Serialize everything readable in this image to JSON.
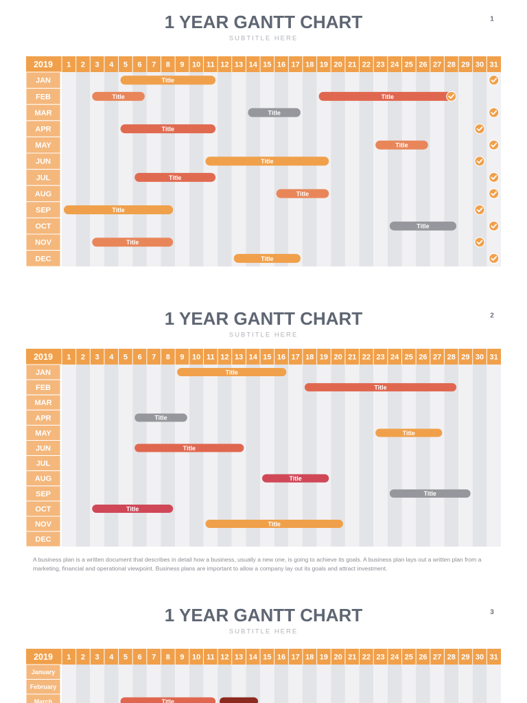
{
  "slides": [
    {
      "number": "1",
      "title": "1 YEAR GANTT CHART",
      "subtitle": "SUBTITLE HERE",
      "year": "2019",
      "days": [
        1,
        2,
        3,
        4,
        5,
        6,
        7,
        8,
        9,
        10,
        11,
        12,
        13,
        14,
        15,
        16,
        17,
        18,
        19,
        20,
        21,
        22,
        23,
        24,
        25,
        26,
        27,
        28,
        29,
        30,
        31
      ],
      "rows": [
        {
          "label": "JAN",
          "bars": [
            {
              "label": "Title",
              "start": 5,
              "end": 11,
              "color": "#f0a04b"
            }
          ],
          "checks": [
            31
          ]
        },
        {
          "label": "FEB",
          "bars": [
            {
              "label": "Title",
              "start": 3,
              "end": 6,
              "color": "#e8865a"
            },
            {
              "label": "Title",
              "start": 19,
              "end": 28,
              "color": "#e0674f"
            }
          ],
          "checks": [
            28
          ]
        },
        {
          "label": "MAR",
          "bars": [
            {
              "label": "Title",
              "start": 14,
              "end": 17,
              "color": "#96979c"
            }
          ],
          "checks": [
            31
          ]
        },
        {
          "label": "APR",
          "bars": [
            {
              "label": "Title",
              "start": 5,
              "end": 11,
              "color": "#e06a50"
            }
          ],
          "checks": [
            30
          ]
        },
        {
          "label": "MAY",
          "bars": [
            {
              "label": "Title",
              "start": 23,
              "end": 26,
              "color": "#e8865a"
            }
          ],
          "checks": [
            31
          ]
        },
        {
          "label": "JUN",
          "bars": [
            {
              "label": "Title",
              "start": 11,
              "end": 19,
              "color": "#f0a04b"
            }
          ],
          "checks": [
            30
          ]
        },
        {
          "label": "JUL",
          "bars": [
            {
              "label": "Title",
              "start": 6,
              "end": 11,
              "color": "#e06a50"
            }
          ],
          "checks": [
            31
          ]
        },
        {
          "label": "AUG",
          "bars": [
            {
              "label": "Title",
              "start": 16,
              "end": 19,
              "color": "#e8865a"
            }
          ],
          "checks": [
            31
          ]
        },
        {
          "label": "SEP",
          "bars": [
            {
              "label": "Title",
              "start": 1,
              "end": 8,
              "color": "#f0a04b"
            }
          ],
          "checks": [
            30
          ]
        },
        {
          "label": "OCT",
          "bars": [
            {
              "label": "Title",
              "start": 24,
              "end": 28,
              "color": "#96979c"
            }
          ],
          "checks": [
            31
          ]
        },
        {
          "label": "NOV",
          "bars": [
            {
              "label": "Title",
              "start": 3,
              "end": 8,
              "color": "#e8865a"
            }
          ],
          "checks": [
            30
          ]
        },
        {
          "label": "DEC",
          "bars": [
            {
              "label": "Title",
              "start": 13,
              "end": 17,
              "color": "#f0a04b"
            }
          ],
          "checks": [
            31
          ]
        }
      ]
    },
    {
      "number": "2",
      "title": "1 YEAR GANTT CHART",
      "subtitle": "SUBTITLE HERE",
      "year": "2019",
      "days": [
        1,
        2,
        3,
        4,
        5,
        6,
        7,
        8,
        9,
        10,
        11,
        12,
        13,
        14,
        15,
        16,
        17,
        18,
        19,
        20,
        21,
        22,
        23,
        24,
        25,
        26,
        27,
        28,
        29,
        30,
        31
      ],
      "rows": [
        {
          "label": "JAN",
          "bars": [
            {
              "label": "Title",
              "start": 9,
              "end": 16,
              "color": "#f0a04b"
            }
          ]
        },
        {
          "label": "FEB",
          "bars": [
            {
              "label": "Title",
              "start": 18,
              "end": 28,
              "color": "#e0674f"
            }
          ]
        },
        {
          "label": "MAR",
          "bars": []
        },
        {
          "label": "APR",
          "bars": [
            {
              "label": "Title",
              "start": 6,
              "end": 9,
              "color": "#96979c"
            }
          ]
        },
        {
          "label": "MAY",
          "bars": [
            {
              "label": "Title",
              "start": 23,
              "end": 27,
              "color": "#f0a04b"
            }
          ]
        },
        {
          "label": "JUN",
          "bars": [
            {
              "label": "Title",
              "start": 6,
              "end": 13,
              "color": "#e0674f"
            }
          ]
        },
        {
          "label": "JUL",
          "bars": []
        },
        {
          "label": "AUG",
          "bars": [
            {
              "label": "Title",
              "start": 15,
              "end": 19,
              "color": "#d04858"
            }
          ]
        },
        {
          "label": "SEP",
          "bars": [
            {
              "label": "Title",
              "start": 24,
              "end": 29,
              "color": "#96979c"
            }
          ]
        },
        {
          "label": "OCT",
          "bars": [
            {
              "label": "Title",
              "start": 3,
              "end": 8,
              "color": "#d04858"
            }
          ]
        },
        {
          "label": "NOV",
          "bars": [
            {
              "label": "Title",
              "start": 11,
              "end": 20,
              "color": "#f0a04b"
            }
          ]
        },
        {
          "label": "DEC",
          "bars": []
        }
      ],
      "note": "A business plan is a written document that describes in detail how a business, usually a new one, is going to achieve its goals. A business plan lays out a written plan from a marketing, financial and operational viewpoint. Business plans are important to allow a company lay out its goals and attract investment."
    },
    {
      "number": "3",
      "title": "1 YEAR GANTT CHART",
      "subtitle": "SUBTITLE HERE",
      "year": "2019",
      "days": [
        1,
        2,
        3,
        4,
        5,
        6,
        7,
        8,
        9,
        10,
        11,
        12,
        13,
        14,
        15,
        16,
        17,
        18,
        19,
        20,
        21,
        22,
        23,
        24,
        25,
        26,
        27,
        28,
        29,
        30,
        31
      ],
      "rows": [
        {
          "label": "January",
          "bars": []
        },
        {
          "label": "February",
          "bars": []
        },
        {
          "label": "March",
          "bars": [
            {
              "label": "Title",
              "start": 5,
              "end": 11,
              "color": "#e0674f"
            },
            {
              "start": 12,
              "end": 14,
              "color": "#8b2a1e"
            }
          ]
        }
      ]
    }
  ]
}
